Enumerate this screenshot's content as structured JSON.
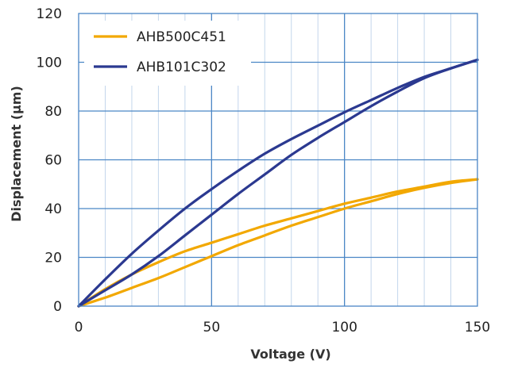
{
  "chart_data": {
    "type": "line",
    "title": "",
    "xlabel": "Voltage (V)",
    "ylabel": "Displacement (µm)",
    "xlim": [
      0,
      150
    ],
    "ylim": [
      0,
      120
    ],
    "x_ticks": [
      0,
      50,
      100,
      150
    ],
    "y_ticks": [
      0,
      20,
      40,
      60,
      80,
      100,
      120
    ],
    "x_tick_labels": [
      "0",
      "50",
      "100",
      "150"
    ],
    "y_tick_labels": [
      "0",
      "20",
      "40",
      "60",
      "80",
      "100",
      "120"
    ],
    "grid": true,
    "legend_position": "top-left",
    "series": [
      {
        "name": "AHB500C451",
        "color": "#F2A800",
        "upper": {
          "x": [
            0,
            10,
            20,
            30,
            40,
            50,
            60,
            70,
            80,
            90,
            100,
            110,
            120,
            130,
            140,
            150
          ],
          "y": [
            0,
            7,
            13,
            18,
            22.5,
            26,
            29.5,
            33,
            36,
            39,
            42,
            44.5,
            47,
            49,
            51,
            52
          ]
        },
        "lower": {
          "x": [
            0,
            10,
            20,
            30,
            40,
            50,
            60,
            70,
            80,
            90,
            100,
            110,
            120,
            130,
            140,
            150
          ],
          "y": [
            0,
            3.5,
            7.5,
            11.5,
            16,
            20.5,
            25,
            29,
            33,
            36.5,
            40,
            43,
            46,
            48.5,
            50.5,
            52
          ]
        }
      },
      {
        "name": "AHB101C302",
        "color": "#2B3990",
        "upper": {
          "x": [
            0,
            10,
            20,
            30,
            40,
            50,
            60,
            70,
            80,
            90,
            100,
            110,
            120,
            130,
            140,
            150
          ],
          "y": [
            0,
            11,
            21.5,
            31,
            40,
            48,
            55.5,
            62.5,
            68.5,
            74,
            79.5,
            84.5,
            89.5,
            94,
            97.5,
            101
          ]
        },
        "lower": {
          "x": [
            0,
            10,
            20,
            30,
            40,
            50,
            60,
            70,
            80,
            90,
            100,
            110,
            120,
            130,
            140,
            150
          ],
          "y": [
            0,
            6.5,
            13,
            20.5,
            29,
            37.5,
            46,
            54,
            62,
            69,
            75.5,
            82,
            88,
            93.5,
            97.5,
            101
          ]
        }
      }
    ]
  }
}
